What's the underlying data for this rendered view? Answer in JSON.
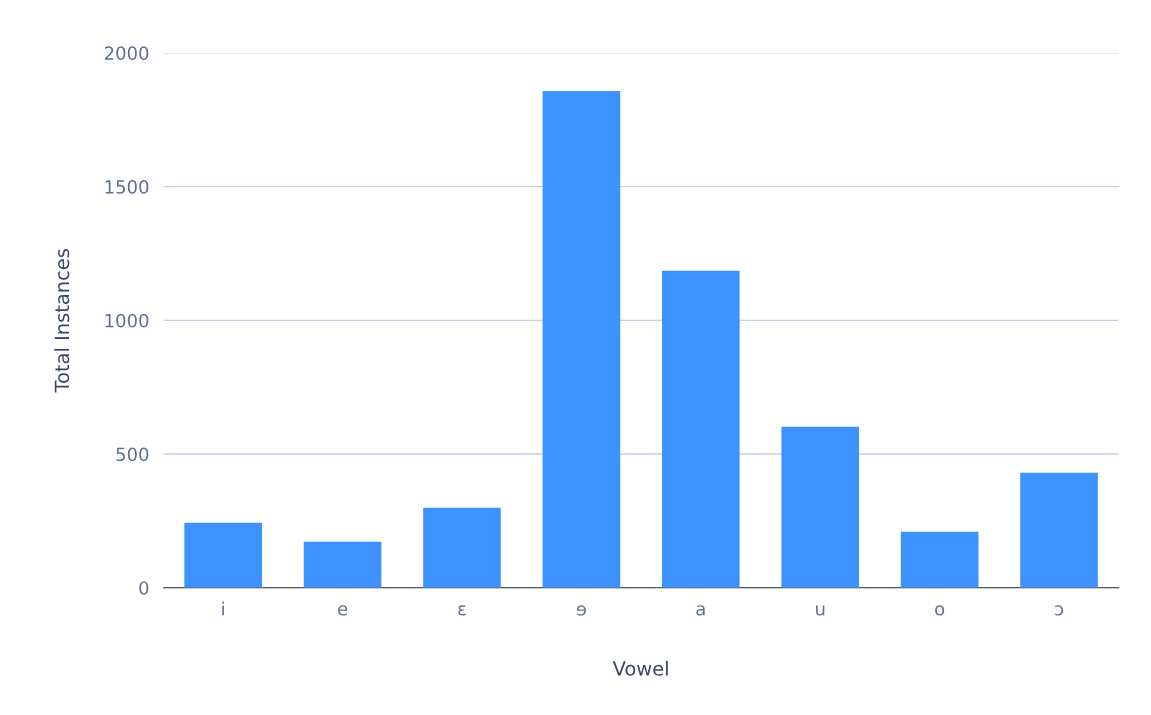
{
  "chart_data": {
    "type": "bar",
    "xlabel": "Vowel",
    "ylabel": "Total Instances",
    "categories": [
      "i",
      "e",
      "ɛ",
      "ɘ",
      "a",
      "u",
      "o",
      "ɔ"
    ],
    "values": [
      243,
      172,
      299,
      1858,
      1185,
      602,
      209,
      430
    ],
    "color": "#3d92fe",
    "ylim": [
      0,
      2000
    ],
    "yticks": [
      0,
      500,
      1000,
      1500,
      2000
    ],
    "grid": "y"
  }
}
